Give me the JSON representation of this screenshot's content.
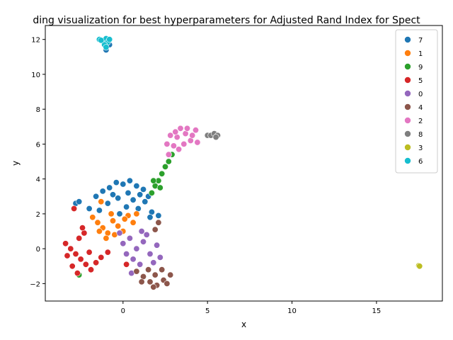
{
  "chart_data": {
    "type": "scatter",
    "title": "ding visualization for best hyperparameters for Adjusted Rand Index for Spect",
    "xlabel": "x",
    "ylabel": "y",
    "xlim": [
      -4.6,
      18.9
    ],
    "ylim": [
      -3.0,
      12.8
    ],
    "xticks": [
      0,
      5,
      10,
      15
    ],
    "yticks": [
      -2,
      0,
      2,
      4,
      6,
      8,
      10,
      12
    ],
    "grid": false,
    "legend_position": "top-right",
    "series": [
      {
        "name": "7",
        "color": "#1f77b4",
        "points": [
          [
            -2.8,
            2.6
          ],
          [
            -2.6,
            2.7
          ],
          [
            -1.6,
            3.0
          ],
          [
            -1.2,
            3.3
          ],
          [
            -0.8,
            3.5
          ],
          [
            -0.4,
            3.8
          ],
          [
            0.0,
            3.7
          ],
          [
            0.4,
            3.9
          ],
          [
            0.8,
            3.6
          ],
          [
            1.2,
            3.4
          ],
          [
            1.5,
            3.0
          ],
          [
            0.6,
            2.8
          ],
          [
            0.2,
            2.4
          ],
          [
            -0.3,
            2.9
          ],
          [
            -0.9,
            2.6
          ],
          [
            -1.4,
            2.2
          ],
          [
            0.9,
            2.3
          ],
          [
            1.3,
            2.7
          ],
          [
            1.7,
            2.1
          ],
          [
            2.1,
            1.9
          ],
          [
            1.6,
            1.8
          ],
          [
            0.3,
            3.2
          ],
          [
            -0.6,
            3.1
          ],
          [
            -1.0,
            11.4
          ],
          [
            -0.8,
            11.7
          ],
          [
            -2.0,
            2.3
          ],
          [
            -0.2,
            2.0
          ],
          [
            1.0,
            3.1
          ]
        ]
      },
      {
        "name": "1",
        "color": "#ff7f0e",
        "points": [
          [
            -1.8,
            1.8
          ],
          [
            -1.5,
            1.5
          ],
          [
            -1.2,
            1.2
          ],
          [
            -0.9,
            0.9
          ],
          [
            -0.6,
            1.6
          ],
          [
            -0.3,
            1.3
          ],
          [
            0.0,
            1.0
          ],
          [
            0.3,
            1.9
          ],
          [
            0.6,
            1.5
          ],
          [
            -1.0,
            0.6
          ],
          [
            -1.4,
            1.0
          ],
          [
            -0.7,
            2.0
          ],
          [
            0.1,
            1.7
          ],
          [
            -1.3,
            2.7
          ],
          [
            -0.5,
            0.8
          ],
          [
            0.8,
            2.0
          ]
        ]
      },
      {
        "name": "9",
        "color": "#2ca02c",
        "points": [
          [
            1.7,
            3.2
          ],
          [
            1.9,
            3.6
          ],
          [
            2.1,
            3.9
          ],
          [
            2.3,
            4.3
          ],
          [
            2.5,
            4.7
          ],
          [
            2.7,
            5.0
          ],
          [
            2.9,
            5.4
          ],
          [
            2.2,
            3.5
          ],
          [
            1.8,
            3.9
          ],
          [
            -2.6,
            -1.5
          ]
        ]
      },
      {
        "name": "5",
        "color": "#d62728",
        "points": [
          [
            -3.4,
            0.3
          ],
          [
            -3.1,
            0.0
          ],
          [
            -2.8,
            -0.3
          ],
          [
            -2.5,
            -0.6
          ],
          [
            -2.2,
            -0.9
          ],
          [
            -1.9,
            -1.2
          ],
          [
            -2.6,
            0.6
          ],
          [
            -2.3,
            0.9
          ],
          [
            -3.0,
            -1.0
          ],
          [
            -2.7,
            -1.4
          ],
          [
            -2.0,
            -0.2
          ],
          [
            -1.6,
            -0.8
          ],
          [
            -1.3,
            -0.5
          ],
          [
            -2.9,
            2.3
          ],
          [
            -0.9,
            -0.2
          ],
          [
            -3.3,
            -0.4
          ],
          [
            -2.4,
            1.2
          ],
          [
            0.2,
            -0.9
          ]
        ]
      },
      {
        "name": "0",
        "color": "#9467bd",
        "points": [
          [
            0.0,
            0.3
          ],
          [
            0.4,
            0.6
          ],
          [
            0.8,
            0.0
          ],
          [
            1.2,
            0.4
          ],
          [
            1.6,
            -0.3
          ],
          [
            2.0,
            0.2
          ],
          [
            0.6,
            -0.6
          ],
          [
            1.0,
            -0.9
          ],
          [
            1.4,
            0.8
          ],
          [
            0.2,
            -0.3
          ],
          [
            1.8,
            -0.8
          ],
          [
            2.2,
            -0.5
          ],
          [
            0.5,
            -1.4
          ],
          [
            1.1,
            1.0
          ],
          [
            -0.2,
            0.9
          ]
        ]
      },
      {
        "name": "4",
        "color": "#8c564b",
        "points": [
          [
            0.8,
            -1.3
          ],
          [
            1.2,
            -1.6
          ],
          [
            1.6,
            -1.9
          ],
          [
            2.0,
            -2.1
          ],
          [
            2.4,
            -1.8
          ],
          [
            2.8,
            -1.5
          ],
          [
            1.5,
            -1.2
          ],
          [
            1.9,
            -1.5
          ],
          [
            2.3,
            -1.2
          ],
          [
            1.1,
            -1.9
          ],
          [
            2.6,
            -2.0
          ],
          [
            1.8,
            -2.2
          ],
          [
            2.1,
            1.5
          ],
          [
            1.9,
            1.1
          ]
        ]
      },
      {
        "name": "2",
        "color": "#e377c2",
        "points": [
          [
            2.7,
            5.4
          ],
          [
            3.0,
            5.9
          ],
          [
            3.2,
            6.4
          ],
          [
            3.4,
            6.9
          ],
          [
            3.7,
            6.6
          ],
          [
            4.0,
            6.2
          ],
          [
            4.3,
            6.8
          ],
          [
            3.6,
            6.0
          ],
          [
            3.1,
            6.7
          ],
          [
            2.8,
            6.5
          ],
          [
            3.8,
            6.9
          ],
          [
            4.4,
            6.1
          ],
          [
            3.3,
            5.7
          ],
          [
            2.6,
            6.0
          ],
          [
            4.1,
            6.5
          ]
        ]
      },
      {
        "name": "8",
        "color": "#7f7f7f",
        "points": [
          [
            5.0,
            6.5
          ],
          [
            5.2,
            6.5
          ],
          [
            5.4,
            6.6
          ],
          [
            5.6,
            6.5
          ],
          [
            5.5,
            6.4
          ]
        ]
      },
      {
        "name": "3",
        "color": "#bcbd22",
        "points": [
          [
            17.5,
            -0.97
          ],
          [
            17.55,
            -1.0
          ]
        ]
      },
      {
        "name": "6",
        "color": "#17becf",
        "points": [
          [
            -1.4,
            12.0
          ],
          [
            -1.2,
            11.9
          ],
          [
            -1.0,
            12.05
          ],
          [
            -0.9,
            11.85
          ],
          [
            -1.1,
            11.7
          ],
          [
            -0.8,
            12.0
          ],
          [
            -1.3,
            11.95
          ],
          [
            -1.0,
            11.55
          ]
        ]
      }
    ]
  }
}
